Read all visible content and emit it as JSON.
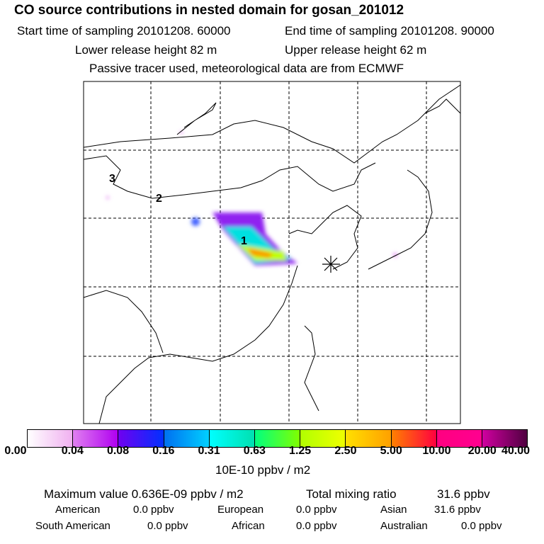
{
  "title": "CO  source contributions in nested domain for gosan_201012",
  "start_time": "Start time of sampling 20101208. 60000",
  "end_time": "End time of sampling 20101208. 90000",
  "lower_release": "Lower release height   82 m",
  "upper_release": "Upper release height   62 m",
  "tracer_note": "Passive tracer used, meteorological data are from ECMWF",
  "map_labels": [
    "3",
    "2",
    "1"
  ],
  "colorbar": {
    "labels": [
      "0.00",
      "0.04",
      "0.08",
      "0.16",
      "0.31",
      "0.63",
      "1.25",
      "2.50",
      "5.00",
      "10.00",
      "20.00",
      "40.00"
    ],
    "colors": [
      [
        "#ffffff",
        "#f0b0f0"
      ],
      [
        "#e080f0",
        "#b000f0"
      ],
      [
        "#7000f0",
        "#0030ff"
      ],
      [
        "#0070f0",
        "#00d0ff"
      ],
      [
        "#00ffff",
        "#00e0b0"
      ],
      [
        "#00ff80",
        "#80ff00"
      ],
      [
        "#b0ff00",
        "#f0ff00"
      ],
      [
        "#ffe000",
        "#ffa000"
      ],
      [
        "#ff8000",
        "#ff0040"
      ],
      [
        "#ff0080",
        "#ff0090"
      ],
      [
        "#d000a0",
        "#500040"
      ]
    ],
    "unit": "10E-10 ppbv / m2"
  },
  "stats": {
    "max_value": "Maximum value  0.636E-09 ppbv / m2",
    "total": "Total mixing ratio",
    "total_value": "31.6 ppbv",
    "regions": [
      {
        "name": "American",
        "value": "0.0 ppbv"
      },
      {
        "name": "European",
        "value": "0.0 ppbv"
      },
      {
        "name": "Asian",
        "value": "31.6 ppbv"
      },
      {
        "name": "South American",
        "value": "0.0 ppbv"
      },
      {
        "name": "African",
        "value": "0.0 ppbv"
      },
      {
        "name": "Australian",
        "value": "0.0 ppbv"
      }
    ]
  }
}
